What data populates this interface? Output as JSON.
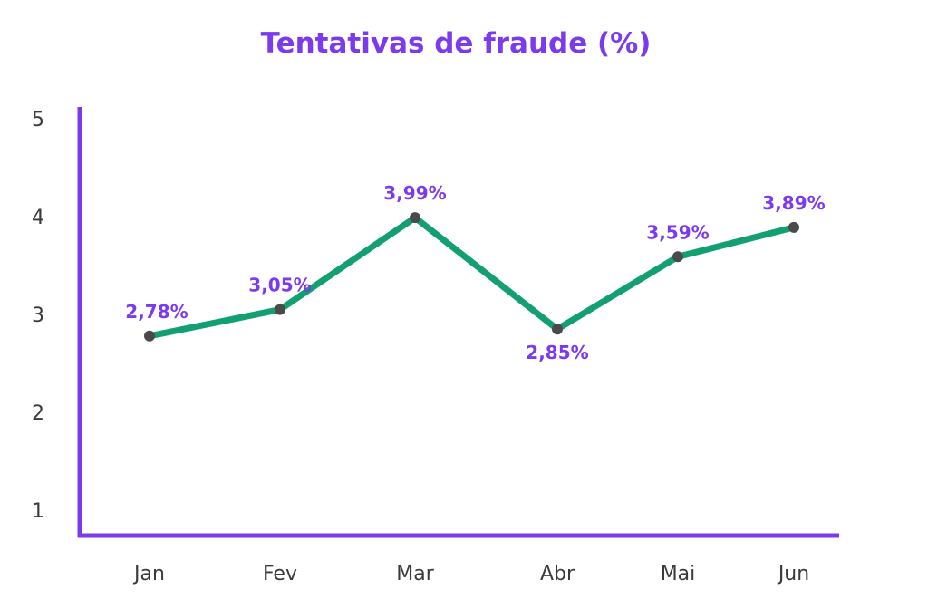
{
  "chart_data": {
    "type": "line",
    "title": "Tentativas de fraude (%)",
    "categories": [
      "Jan",
      "Fev",
      "Mar",
      "Abr",
      "Mai",
      "Jun"
    ],
    "values": [
      2.78,
      3.05,
      3.99,
      2.85,
      3.59,
      3.89
    ],
    "data_labels": [
      "2,78%",
      "3,05%",
      "3,99%",
      "2,85%",
      "3,59%",
      "3,89%"
    ],
    "label_positions": [
      "above",
      "above",
      "above",
      "below",
      "above",
      "above"
    ],
    "yticks": [
      "1",
      "2",
      "3",
      "4",
      "5"
    ],
    "ylim": [
      1,
      5
    ],
    "grid": false,
    "colors": {
      "title": "#7c3aed",
      "axis": "#7c3aed",
      "line": "#12a070",
      "marker": "#4a4a4a",
      "data_label": "#7c3aed"
    }
  }
}
